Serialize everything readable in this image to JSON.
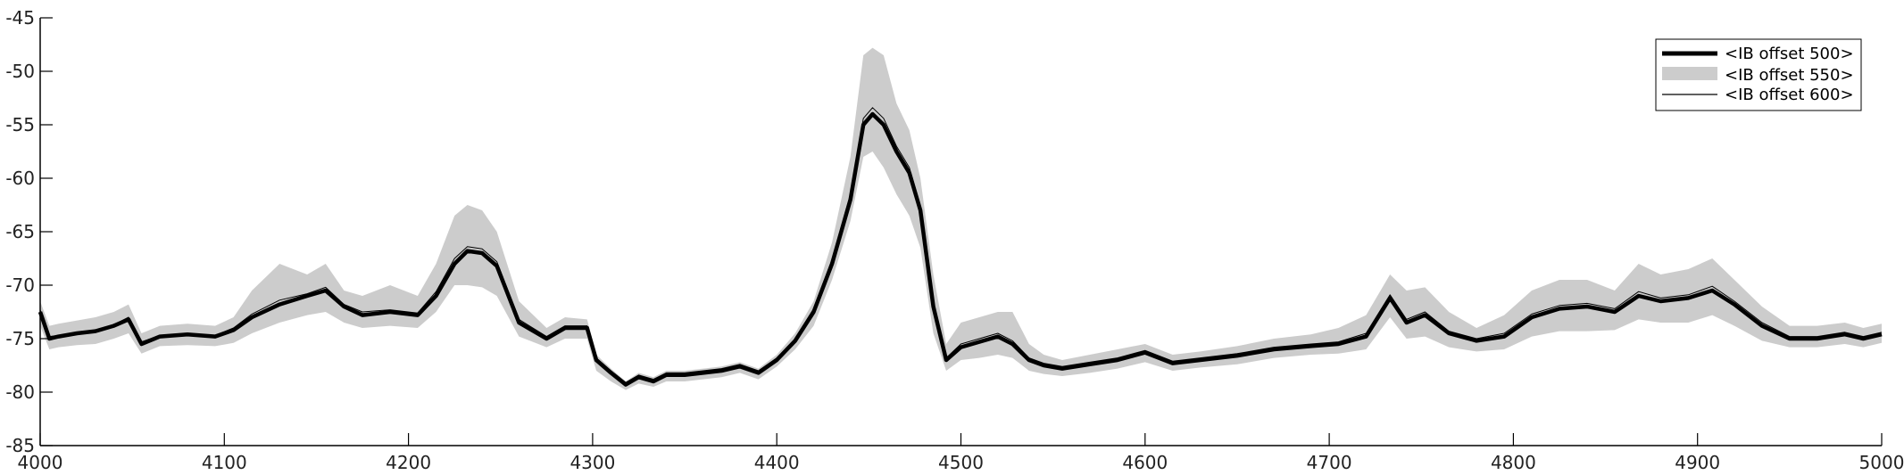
{
  "chart_data": {
    "type": "line",
    "title": "",
    "xlabel": "",
    "ylabel": "",
    "xlim": [
      4000,
      5000
    ],
    "ylim": [
      -85,
      -45
    ],
    "xticks": [
      4000,
      4100,
      4200,
      4300,
      4400,
      4500,
      4600,
      4700,
      4800,
      4900,
      5000
    ],
    "yticks": [
      -45,
      -50,
      -55,
      -60,
      -65,
      -70,
      -75,
      -80,
      -85
    ],
    "grid": false,
    "legend_position": "top-right",
    "series": [
      {
        "name": "<IB offset 500>",
        "style": "thick-black-line",
        "color": "#000000",
        "x": [
          4000,
          4005,
          4010,
          4020,
          4030,
          4040,
          4048,
          4055,
          4065,
          4080,
          4095,
          4105,
          4115,
          4130,
          4145,
          4155,
          4165,
          4175,
          4190,
          4205,
          4215,
          4225,
          4232,
          4240,
          4248,
          4260,
          4275,
          4285,
          4297,
          4302,
          4310,
          4318,
          4325,
          4333,
          4340,
          4350,
          4360,
          4370,
          4380,
          4390,
          4400,
          4410,
          4420,
          4430,
          4440,
          4447,
          4452,
          4458,
          4465,
          4472,
          4478,
          4485,
          4492,
          4500,
          4510,
          4520,
          4528,
          4537,
          4545,
          4555,
          4570,
          4585,
          4600,
          4615,
          4630,
          4650,
          4670,
          4690,
          4705,
          4720,
          4733,
          4742,
          4752,
          4765,
          4780,
          4795,
          4810,
          4825,
          4840,
          4855,
          4868,
          4880,
          4895,
          4908,
          4920,
          4935,
          4950,
          4965,
          4980,
          4990,
          5000
        ],
        "y": [
          -72.5,
          -75,
          -74.8,
          -74.5,
          -74.3,
          -73.8,
          -73.2,
          -75.5,
          -74.8,
          -74.6,
          -74.8,
          -74.2,
          -73,
          -71.8,
          -71,
          -70.5,
          -72,
          -72.8,
          -72.5,
          -72.8,
          -71,
          -68,
          -66.8,
          -67,
          -68.2,
          -73.5,
          -75,
          -74,
          -74,
          -77,
          -78.2,
          -79.3,
          -78.6,
          -79,
          -78.4,
          -78.4,
          -78.2,
          -78,
          -77.6,
          -78.2,
          -77,
          -75.2,
          -72.5,
          -68,
          -62,
          -55,
          -54,
          -55,
          -57.5,
          -59.5,
          -63,
          -72,
          -77,
          -75.8,
          -75.3,
          -74.8,
          -75.5,
          -77,
          -77.5,
          -77.8,
          -77.4,
          -77,
          -76.3,
          -77.3,
          -77,
          -76.6,
          -76,
          -75.7,
          -75.5,
          -74.8,
          -71.2,
          -73.5,
          -72.8,
          -74.5,
          -75.2,
          -74.8,
          -73,
          -72.2,
          -72,
          -72.5,
          -71,
          -71.5,
          -71.2,
          -70.5,
          -71.8,
          -73.8,
          -75,
          -75,
          -74.6,
          -75,
          -74.6
        ]
      },
      {
        "name": "<IB offset 550>",
        "style": "light-gray-band",
        "color": "#cccccc",
        "x": [
          4000,
          4005,
          4010,
          4020,
          4030,
          4040,
          4048,
          4055,
          4065,
          4080,
          4095,
          4105,
          4115,
          4130,
          4145,
          4155,
          4165,
          4175,
          4190,
          4205,
          4215,
          4225,
          4232,
          4240,
          4248,
          4260,
          4275,
          4285,
          4297,
          4302,
          4310,
          4318,
          4325,
          4333,
          4340,
          4350,
          4360,
          4370,
          4380,
          4390,
          4400,
          4410,
          4420,
          4430,
          4440,
          4447,
          4452,
          4458,
          4465,
          4472,
          4478,
          4485,
          4492,
          4500,
          4510,
          4520,
          4528,
          4537,
          4545,
          4555,
          4570,
          4585,
          4600,
          4615,
          4630,
          4650,
          4670,
          4690,
          4705,
          4720,
          4733,
          4742,
          4752,
          4765,
          4780,
          4795,
          4810,
          4825,
          4840,
          4855,
          4868,
          4880,
          4895,
          4908,
          4920,
          4935,
          4950,
          4965,
          4980,
          4990,
          5000
        ],
        "y_upper": [
          -71.5,
          -73.8,
          -73.6,
          -73.3,
          -73,
          -72.5,
          -71.8,
          -74.5,
          -73.8,
          -73.6,
          -73.8,
          -73,
          -70.5,
          -68,
          -69,
          -68,
          -70.5,
          -71,
          -70,
          -71,
          -68,
          -63.5,
          -62.5,
          -63,
          -65,
          -71.5,
          -74,
          -73,
          -73.2,
          -76.5,
          -77.8,
          -79,
          -78.2,
          -78.6,
          -78,
          -78,
          -77.8,
          -77.6,
          -77.2,
          -77.8,
          -76.5,
          -74.5,
          -71.5,
          -66,
          -58,
          -48.5,
          -47.8,
          -48.5,
          -53,
          -55.5,
          -60,
          -69,
          -75.5,
          -73.5,
          -73,
          -72.5,
          -72.5,
          -75.5,
          -76.5,
          -77,
          -76.5,
          -76,
          -75.5,
          -76.5,
          -76.2,
          -75.7,
          -75,
          -74.6,
          -74,
          -72.8,
          -69,
          -70.5,
          -70.2,
          -72.5,
          -74,
          -72.8,
          -70.5,
          -69.5,
          -69.5,
          -70.5,
          -68,
          -69,
          -68.5,
          -67.5,
          -69.5,
          -72,
          -73.8,
          -73.8,
          -73.5,
          -74,
          -73.6
        ],
        "y_lower": [
          -73.8,
          -76,
          -75.8,
          -75.6,
          -75.5,
          -75,
          -74.5,
          -76.4,
          -75.7,
          -75.6,
          -75.7,
          -75.4,
          -74.5,
          -73.5,
          -72.8,
          -72.5,
          -73.5,
          -74,
          -73.8,
          -74,
          -72.5,
          -70,
          -70,
          -70.2,
          -71,
          -74.8,
          -75.8,
          -75,
          -75,
          -78,
          -79,
          -79.8,
          -79.2,
          -79.5,
          -79,
          -79,
          -78.8,
          -78.6,
          -78.2,
          -78.8,
          -77.6,
          -76,
          -73.8,
          -69.5,
          -64,
          -58,
          -57.5,
          -59,
          -61.5,
          -63.5,
          -66.5,
          -74.5,
          -78,
          -77,
          -76.8,
          -76.5,
          -76.8,
          -78,
          -78.3,
          -78.5,
          -78.2,
          -77.8,
          -77.2,
          -78,
          -77.7,
          -77.4,
          -76.8,
          -76.5,
          -76.4,
          -76,
          -73,
          -75,
          -74.8,
          -75.8,
          -76.2,
          -76,
          -74.8,
          -74.3,
          -74.3,
          -74.2,
          -73.2,
          -73.5,
          -73.5,
          -72.8,
          -73.8,
          -75.2,
          -75.8,
          -75.8,
          -75.5,
          -75.8,
          -75.4
        ]
      },
      {
        "name": "<IB offset 600>",
        "style": "thin-black-line",
        "color": "#000000",
        "x": [
          4000,
          4005,
          4010,
          4020,
          4030,
          4040,
          4048,
          4055,
          4065,
          4080,
          4095,
          4105,
          4115,
          4130,
          4145,
          4155,
          4165,
          4175,
          4190,
          4205,
          4215,
          4225,
          4232,
          4240,
          4248,
          4260,
          4275,
          4285,
          4297,
          4302,
          4310,
          4318,
          4325,
          4333,
          4340,
          4350,
          4360,
          4370,
          4380,
          4390,
          4400,
          4410,
          4420,
          4430,
          4440,
          4447,
          4452,
          4458,
          4465,
          4472,
          4478,
          4485,
          4492,
          4500,
          4510,
          4520,
          4528,
          4537,
          4545,
          4555,
          4570,
          4585,
          4600,
          4615,
          4630,
          4650,
          4670,
          4690,
          4705,
          4720,
          4733,
          4742,
          4752,
          4765,
          4780,
          4795,
          4810,
          4825,
          4840,
          4855,
          4868,
          4880,
          4895,
          4908,
          4920,
          4935,
          4950,
          4965,
          4980,
          4990,
          5000
        ],
        "y": [
          -72.3,
          -74.8,
          -74.7,
          -74.4,
          -74.2,
          -73.7,
          -73,
          -75.3,
          -74.7,
          -74.5,
          -74.7,
          -74,
          -72.7,
          -71.4,
          -70.8,
          -70.2,
          -71.8,
          -72.5,
          -72.3,
          -72.6,
          -70.6,
          -67.5,
          -66.4,
          -66.6,
          -67.8,
          -73.2,
          -74.8,
          -73.8,
          -73.8,
          -76.8,
          -78,
          -79.1,
          -78.4,
          -78.8,
          -78.2,
          -78.2,
          -78,
          -77.8,
          -77.4,
          -78,
          -76.8,
          -75,
          -72.2,
          -67.6,
          -61.5,
          -54.4,
          -53.4,
          -54.4,
          -57,
          -59,
          -62.6,
          -71.6,
          -76.8,
          -75.5,
          -75,
          -74.5,
          -75.2,
          -76.8,
          -77.3,
          -77.6,
          -77.2,
          -76.8,
          -76.1,
          -77.1,
          -76.8,
          -76.4,
          -75.8,
          -75.5,
          -75.3,
          -74.5,
          -70.9,
          -73.2,
          -72.5,
          -74.3,
          -75,
          -74.5,
          -72.7,
          -71.9,
          -71.7,
          -72.2,
          -70.6,
          -71.2,
          -70.9,
          -70.1,
          -71.5,
          -73.5,
          -74.8,
          -74.8,
          -74.4,
          -74.8,
          -74.4
        ]
      }
    ]
  }
}
